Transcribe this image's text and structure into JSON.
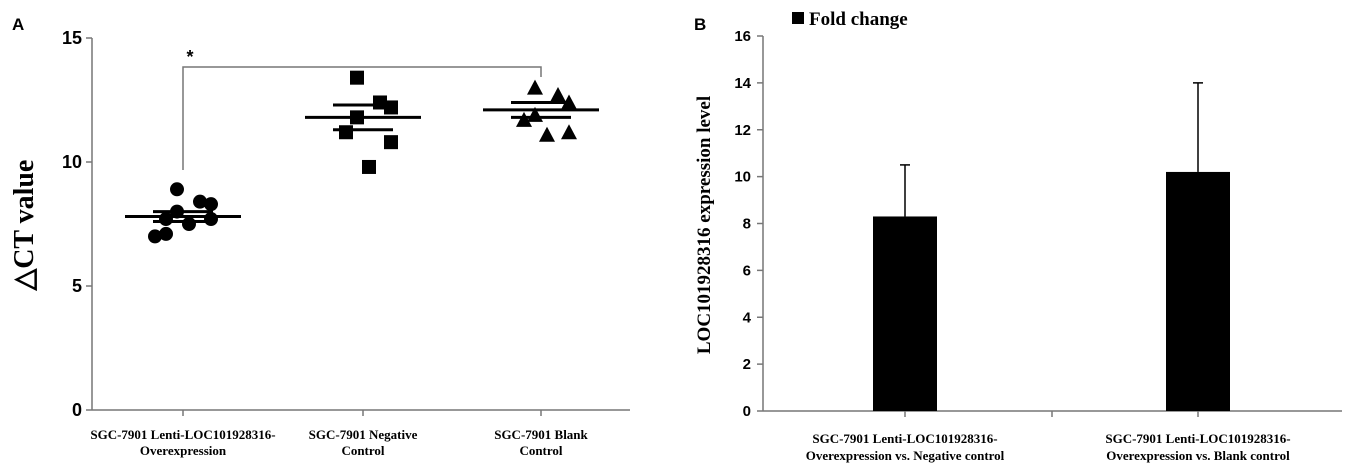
{
  "chart_data": [
    {
      "panel": "A",
      "type": "scatter",
      "title": "",
      "xlabel": "",
      "ylabel": "△CT value",
      "ylim": [
        0,
        15
      ],
      "yticks": [
        0,
        5,
        10,
        15
      ],
      "grid": false,
      "categories": [
        [
          "SGC-7901 Lenti-LOC101928316-",
          "Overexpression"
        ],
        [
          "SGC-7901 Negative",
          "Control"
        ],
        [
          "SGC-7901 Blank",
          "Control"
        ]
      ],
      "series": [
        {
          "marker": "circle",
          "values": [
            8.9,
            8.4,
            8.3,
            8.0,
            7.7,
            7.7,
            7.5,
            7.1,
            7.0
          ],
          "mean": 7.8,
          "sem": 0.2
        },
        {
          "marker": "square",
          "values": [
            13.4,
            12.4,
            12.2,
            11.8,
            11.2,
            10.8,
            9.8
          ],
          "mean": 11.8,
          "sem": 0.5
        },
        {
          "marker": "triangle",
          "values": [
            13.0,
            12.7,
            12.4,
            11.9,
            11.7,
            11.2,
            11.1
          ],
          "mean": 12.1,
          "sem": 0.3
        }
      ],
      "significance": {
        "label": "*",
        "from": 0,
        "to": 2
      }
    },
    {
      "panel": "B",
      "type": "bar",
      "title": "",
      "xlabel": "",
      "ylabel": "LOC101928316 expression level",
      "ylim": [
        0,
        16
      ],
      "yticks": [
        0,
        2,
        4,
        6,
        8,
        10,
        12,
        14,
        16
      ],
      "grid": false,
      "legend": {
        "label": "Fold change",
        "position": "top-left"
      },
      "categories": [
        [
          "SGC-7901 Lenti-LOC101928316-",
          "Overexpression vs. Negative control"
        ],
        [
          "SGC-7901 Lenti-LOC101928316-",
          "Overexpression vs. Blank control"
        ]
      ],
      "series": [
        {
          "name": "Fold change",
          "values": [
            8.3,
            10.2
          ],
          "errors": [
            2.2,
            3.8
          ]
        }
      ],
      "colors": {
        "bar": "#000000"
      }
    }
  ]
}
